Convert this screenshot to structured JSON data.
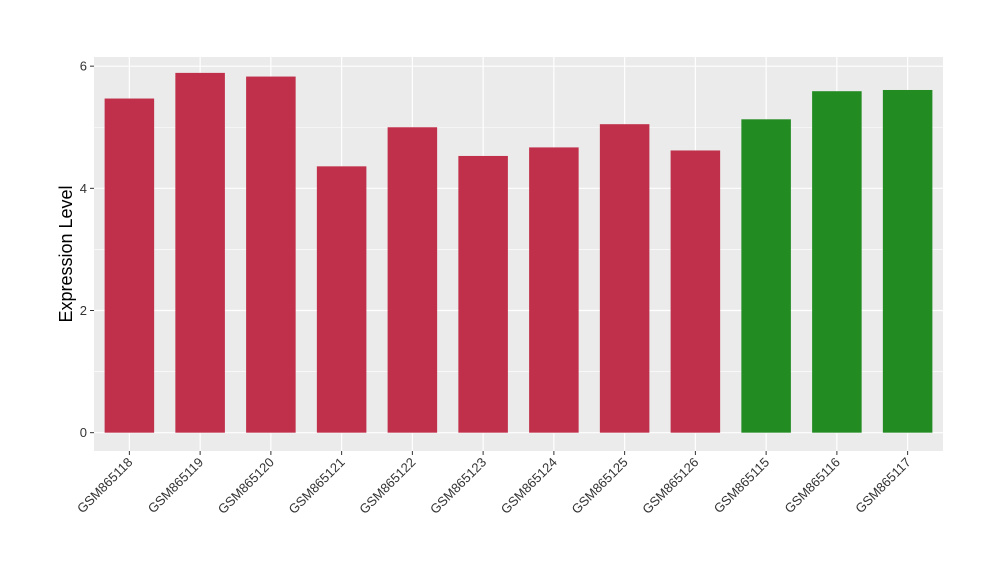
{
  "chart_data": {
    "type": "bar",
    "title": "",
    "xlabel": "",
    "ylabel": "Expression Level",
    "ylim": [
      -0.3,
      6.15
    ],
    "yticks": [
      0,
      2,
      4,
      6
    ],
    "grid": true,
    "categories": [
      "GSM865118",
      "GSM865119",
      "GSM865120",
      "GSM865121",
      "GSM865122",
      "GSM865123",
      "GSM865124",
      "GSM865125",
      "GSM865126",
      "GSM865115",
      "GSM865116",
      "GSM865117"
    ],
    "values": [
      5.47,
      5.89,
      5.83,
      4.36,
      5.0,
      4.53,
      4.67,
      5.05,
      4.62,
      5.13,
      5.59,
      5.61
    ],
    "colors": [
      "#c0304b",
      "#c0304b",
      "#c0304b",
      "#c0304b",
      "#c0304b",
      "#c0304b",
      "#c0304b",
      "#c0304b",
      "#c0304b",
      "#228b22",
      "#228b22",
      "#228b22"
    ],
    "panel_background": "#ebebeb",
    "grid_color": "#ffffff"
  }
}
